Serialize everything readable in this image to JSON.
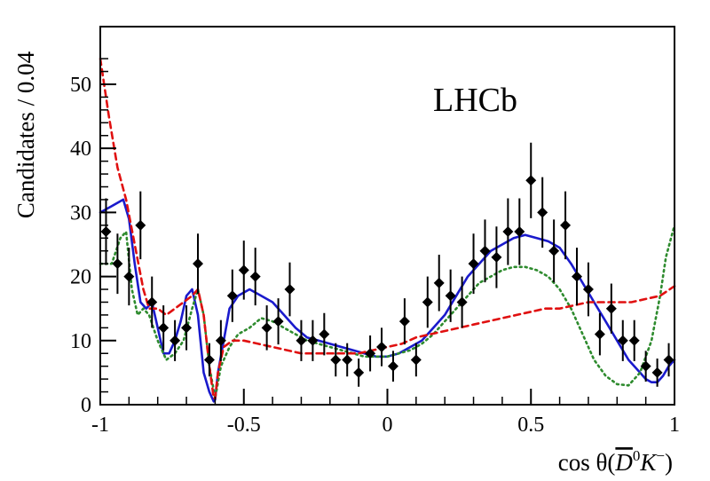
{
  "chart_data": {
    "type": "scatter",
    "brand_label": "LHCb",
    "ylabel": "Candidates / 0.04",
    "xlabel_parts": {
      "prefix": "cos θ(",
      "D": "D",
      "zero": "0",
      "K": "K",
      "minus": "−",
      "suffix": ")"
    },
    "xlim": [
      -1,
      1
    ],
    "ylim": [
      0,
      59
    ],
    "x_ticks": [
      -1,
      -0.5,
      0,
      0.5,
      1
    ],
    "x_tick_labels": [
      "-1",
      "-0.5",
      "0",
      "0.5",
      "1"
    ],
    "y_ticks": [
      0,
      10,
      20,
      30,
      40,
      50
    ],
    "y_tick_labels": [
      "0",
      "10",
      "20",
      "30",
      "40",
      "50"
    ],
    "grid": false,
    "colors": {
      "data": "#000000",
      "fit_total": "#1a1acc",
      "fit_dotted": "#2e8b2e",
      "fit_dashed": "#e01010"
    },
    "data_points": {
      "name": "Data",
      "x": [
        -0.98,
        -0.94,
        -0.9,
        -0.86,
        -0.82,
        -0.78,
        -0.74,
        -0.7,
        -0.66,
        -0.62,
        -0.58,
        -0.54,
        -0.5,
        -0.46,
        -0.42,
        -0.38,
        -0.34,
        -0.3,
        -0.26,
        -0.22,
        -0.18,
        -0.14,
        -0.1,
        -0.06,
        -0.02,
        0.02,
        0.06,
        0.1,
        0.14,
        0.18,
        0.22,
        0.26,
        0.3,
        0.34,
        0.38,
        0.42,
        0.46,
        0.5,
        0.54,
        0.58,
        0.62,
        0.66,
        0.7,
        0.74,
        0.78,
        0.82,
        0.86,
        0.9,
        0.94,
        0.98
      ],
      "y": [
        27,
        22,
        20,
        28,
        16,
        12,
        10,
        12,
        22,
        7,
        10,
        17,
        21,
        20,
        12,
        13,
        18,
        10,
        10,
        11,
        7,
        7,
        5,
        8,
        9,
        6,
        13,
        7,
        16,
        19,
        17,
        16,
        22,
        24,
        23,
        27,
        27,
        35,
        30,
        24,
        28,
        20,
        18,
        11,
        15,
        10,
        10,
        6,
        5,
        7
      ],
      "err": [
        5.2,
        4.7,
        4.5,
        5.3,
        4,
        3.5,
        3.2,
        3.5,
        4.7,
        2.6,
        3.2,
        4.1,
        4.6,
        4.5,
        3.5,
        3.6,
        4.2,
        3.2,
        3.2,
        3.3,
        2.6,
        2.6,
        2.2,
        2.8,
        3,
        2.4,
        3.6,
        2.6,
        4,
        4.4,
        4.1,
        4,
        4.7,
        4.9,
        4.8,
        5.2,
        5.2,
        5.9,
        5.5,
        4.9,
        5.3,
        4.5,
        4.2,
        3.3,
        3.9,
        3.2,
        3.2,
        2.4,
        2.2,
        2.6
      ]
    },
    "series": [
      {
        "style": "solid",
        "x": [
          -1,
          -0.96,
          -0.92,
          -0.9,
          -0.88,
          -0.86,
          -0.84,
          -0.82,
          -0.8,
          -0.78,
          -0.76,
          -0.74,
          -0.72,
          -0.7,
          -0.68,
          -0.66,
          -0.64,
          -0.62,
          -0.605,
          -0.6,
          -0.59,
          -0.57,
          -0.55,
          -0.52,
          -0.48,
          -0.44,
          -0.4,
          -0.36,
          -0.32,
          -0.28,
          -0.24,
          -0.2,
          -0.16,
          -0.12,
          -0.08,
          -0.04,
          0,
          0.04,
          0.08,
          0.12,
          0.16,
          0.2,
          0.24,
          0.28,
          0.32,
          0.36,
          0.4,
          0.44,
          0.48,
          0.52,
          0.56,
          0.6,
          0.64,
          0.68,
          0.72,
          0.76,
          0.8,
          0.84,
          0.88,
          0.9,
          0.92,
          0.94,
          0.96,
          0.98,
          1
        ],
        "y": [
          30,
          31,
          32,
          29,
          22,
          16,
          15,
          16,
          12,
          8,
          8,
          10,
          13,
          17,
          18,
          14,
          5,
          2,
          0.5,
          0.8,
          5,
          10,
          15,
          17,
          18,
          17,
          16,
          14,
          12,
          10.5,
          10,
          9.5,
          9,
          8.5,
          8,
          7.5,
          7.5,
          8,
          9,
          10,
          12,
          14,
          17,
          20,
          22,
          24,
          25,
          26,
          26.5,
          26,
          25.5,
          24.5,
          22,
          19,
          16,
          13,
          10,
          7,
          5,
          4,
          3.5,
          3.5,
          4.5,
          6,
          7
        ]
      },
      {
        "style": "dotted",
        "x": [
          -1,
          -0.96,
          -0.93,
          -0.91,
          -0.89,
          -0.87,
          -0.85,
          -0.83,
          -0.8,
          -0.77,
          -0.74,
          -0.71,
          -0.68,
          -0.66,
          -0.64,
          -0.62,
          -0.6,
          -0.58,
          -0.55,
          -0.52,
          -0.48,
          -0.44,
          -0.4,
          -0.36,
          -0.32,
          -0.28,
          -0.24,
          -0.2,
          -0.16,
          -0.12,
          -0.08,
          -0.04,
          0,
          0.04,
          0.08,
          0.12,
          0.16,
          0.2,
          0.24,
          0.28,
          0.32,
          0.36,
          0.4,
          0.44,
          0.48,
          0.52,
          0.56,
          0.6,
          0.64,
          0.68,
          0.72,
          0.76,
          0.8,
          0.84,
          0.88,
          0.92,
          0.95,
          0.97,
          1
        ],
        "y": [
          22,
          22,
          26,
          27,
          18,
          14,
          15,
          14,
          10,
          7,
          8,
          10,
          15,
          18,
          14,
          6,
          1,
          6,
          9,
          11,
          12,
          13.5,
          13,
          12,
          11,
          10,
          9.5,
          9,
          8.5,
          8,
          7.5,
          7.5,
          7.5,
          8,
          8.5,
          9.5,
          11,
          13,
          15,
          17,
          19,
          20,
          21,
          21.5,
          21.5,
          21,
          20,
          18,
          15,
          11,
          7,
          4.5,
          3.2,
          3,
          5,
          10,
          17,
          23,
          28
        ]
      },
      {
        "style": "dashed",
        "x": [
          -1,
          -0.97,
          -0.94,
          -0.91,
          -0.88,
          -0.85,
          -0.83,
          -0.8,
          -0.77,
          -0.74,
          -0.71,
          -0.68,
          -0.66,
          -0.64,
          -0.62,
          -0.605,
          -0.6,
          -0.59,
          -0.57,
          -0.54,
          -0.5,
          -0.45,
          -0.4,
          -0.35,
          -0.3,
          -0.25,
          -0.2,
          -0.15,
          -0.1,
          -0.05,
          0,
          0.05,
          0.1,
          0.15,
          0.2,
          0.25,
          0.3,
          0.35,
          0.4,
          0.45,
          0.5,
          0.55,
          0.6,
          0.65,
          0.7,
          0.75,
          0.8,
          0.85,
          0.9,
          0.95,
          1
        ],
        "y": [
          54,
          45,
          37,
          32,
          25,
          18,
          15,
          15,
          14,
          15,
          16,
          17,
          18,
          14,
          6,
          1,
          1,
          5,
          9,
          10,
          10,
          9.5,
          9,
          8.5,
          8,
          8,
          8,
          8,
          8,
          8.5,
          9,
          9.5,
          10.5,
          11,
          11.5,
          12,
          12.5,
          13,
          13.5,
          14,
          14.5,
          15,
          15,
          15.5,
          16,
          16,
          16,
          16,
          16.5,
          17,
          18.5
        ]
      }
    ]
  }
}
